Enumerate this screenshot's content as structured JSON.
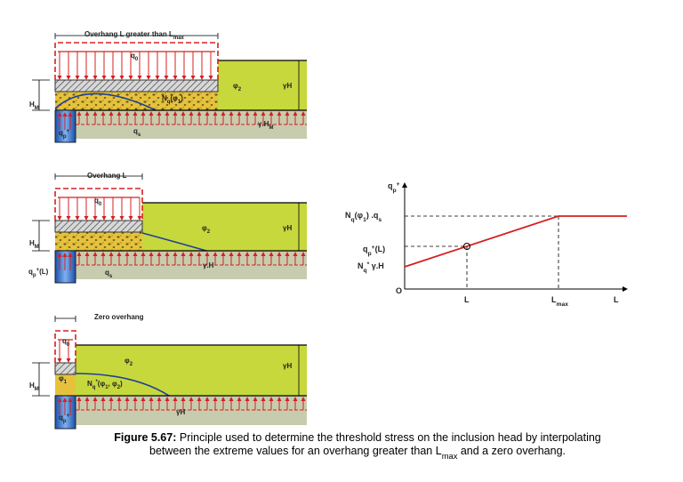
{
  "panels": [
    {
      "labels": [
        [
          "Overhang L greater than L",
          {
            "sub": "max"
          }
        ],
        [
          "q",
          {
            "sub": "0"
          }
        ],
        [
          "φ",
          {
            "sub": "2"
          }
        ],
        [
          "γH"
        ],
        [
          "H",
          {
            "sub": "M"
          }
        ],
        [
          "N",
          {
            "sub": "q"
          },
          "(φ",
          {
            "sub": "1"
          },
          ")"
        ],
        [
          "q",
          {
            "sub": "s"
          }
        ],
        [
          "γ.H",
          {
            "sub": "M"
          }
        ],
        [
          "q",
          {
            "sub": "p"
          },
          {
            "sup": "+"
          }
        ]
      ]
    },
    {
      "labels": [
        [
          "Overhang L"
        ],
        [
          "q",
          {
            "sub": "0"
          }
        ],
        [
          "φ",
          {
            "sub": "2"
          }
        ],
        [
          "γH"
        ],
        [
          "H",
          {
            "sub": "M"
          }
        ],
        [
          "q",
          {
            "sub": "p"
          },
          {
            "sup": "+"
          },
          "(L)"
        ],
        [
          "q",
          {
            "sub": "s"
          }
        ],
        [
          "γ.H"
        ]
      ]
    },
    {
      "labels": [
        [
          "Zero overhang"
        ],
        [
          "q",
          {
            "sub": "0"
          }
        ],
        [
          "φ",
          {
            "sub": "2"
          }
        ],
        [
          "φ",
          {
            "sub": "1"
          }
        ],
        [
          "γH"
        ],
        [
          "H",
          {
            "sub": "M"
          }
        ],
        [
          "N",
          {
            "sub": "q"
          },
          {
            "sup": "*"
          },
          "(φ",
          {
            "sub": "1"
          },
          ", φ",
          {
            "sub": "2"
          },
          ")"
        ],
        [
          "γH"
        ],
        [
          "q",
          {
            "sub": "p"
          },
          {
            "sup": "+"
          }
        ]
      ]
    }
  ],
  "graph": {
    "labels": [
      [
        "q",
        {
          "sub": "p"
        },
        {
          "sup": "+"
        }
      ],
      [
        "N",
        {
          "sub": "q"
        },
        "(φ",
        {
          "sub": "1"
        },
        ") .q",
        {
          "sub": "s"
        }
      ],
      [
        "q",
        {
          "sub": "p"
        },
        {
          "sup": "+"
        },
        "(L)"
      ],
      [
        "N",
        {
          "sub": "q"
        },
        {
          "sup": "*"
        },
        " γ.H"
      ],
      [
        "O"
      ],
      [
        "L"
      ],
      [
        "L",
        {
          "sub": "max"
        }
      ],
      [
        "L"
      ]
    ]
  },
  "caption": {
    "lines": [
      [
        {
          "bold": "Figure 5.67:"
        },
        " Principle used to determine the threshold stress on the inclusion head by interpolating"
      ],
      [
        "between the extreme values for an overhang greater than L",
        {
          "sub": "max"
        },
        " and a zero overhang."
      ]
    ]
  }
}
